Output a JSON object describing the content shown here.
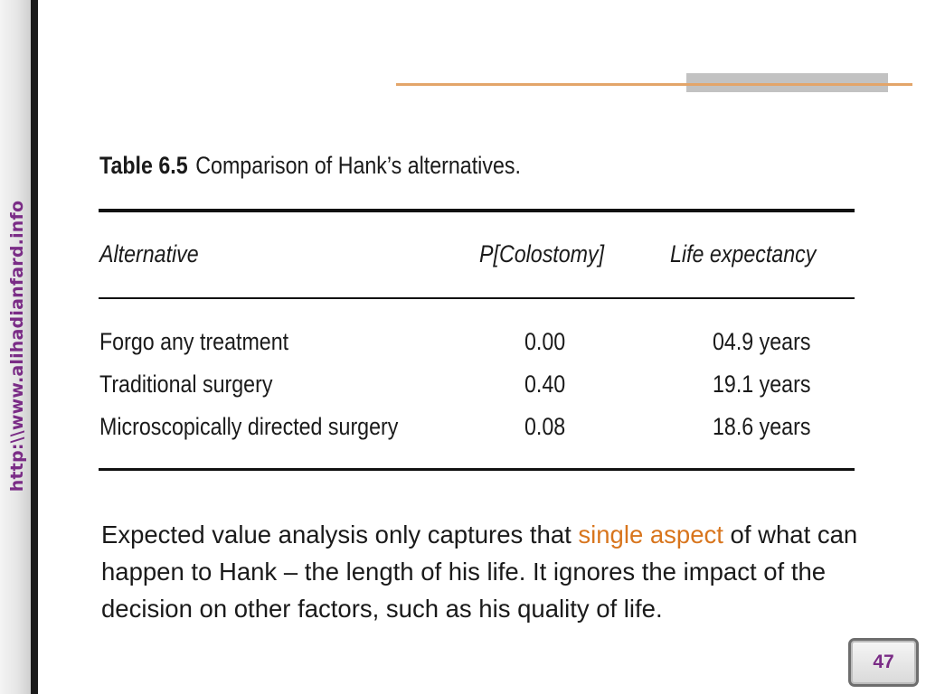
{
  "sidebar": {
    "url_text": "http:\\\\www.alihadianfard.info"
  },
  "table": {
    "caption_number": "Table 6.5",
    "caption_title": "Comparison of Hank’s alternatives.",
    "headers": [
      "Alternative",
      "P[Colostomy]",
      "Life expectancy"
    ],
    "rows": [
      [
        "Forgo any treatment",
        "0.00",
        "04.9 years"
      ],
      [
        "Traditional surgery",
        "0.40",
        "19.1 years"
      ],
      [
        "Microscopically directed surgery",
        "0.08",
        "18.6 years"
      ]
    ]
  },
  "paragraph": {
    "part1": "Expected value analysis only captures that ",
    "highlight": "single aspect",
    "part2": " of what can happen to Hank – the length of his life. It ignores the impact of the decision on other factors, such as his quality of life."
  },
  "slide": {
    "page_number": "47"
  },
  "colors": {
    "accent_purple": "#7a2c86",
    "highlight_orange": "#d8751d",
    "deco_line": "#e3a56a",
    "deco_gray": "#c2c2c2"
  }
}
